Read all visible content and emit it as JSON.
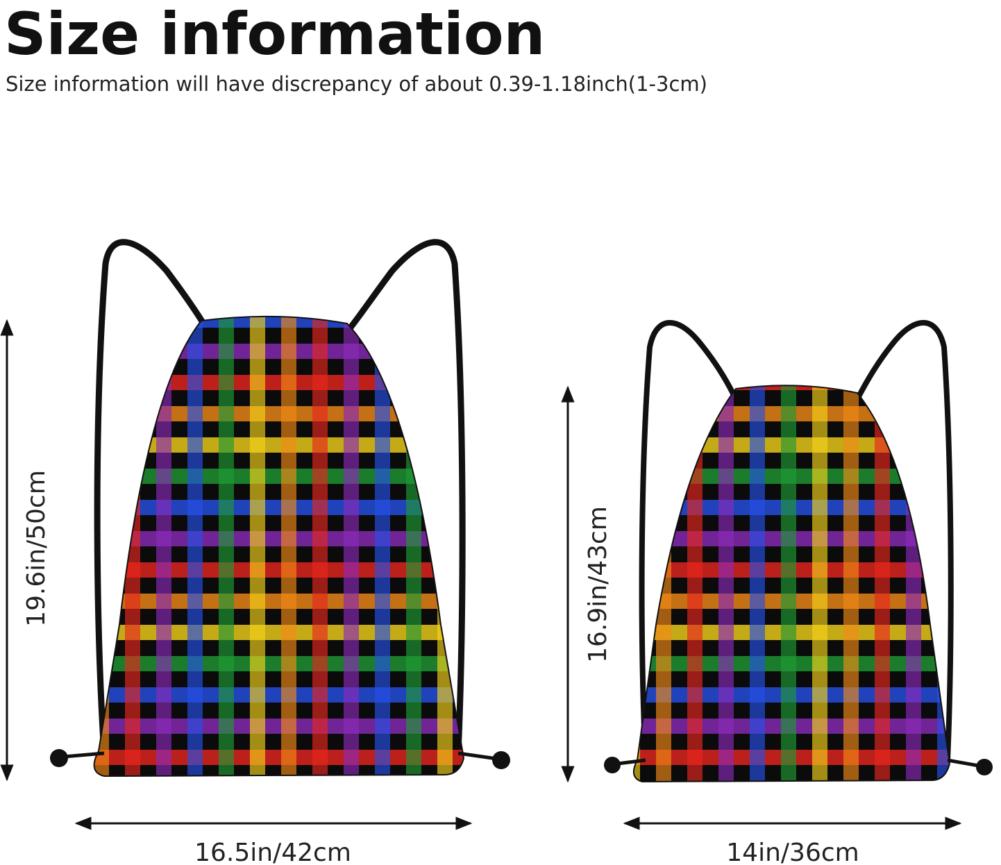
{
  "header": {
    "title": "Size information",
    "subtitle": "Size information will have discrepancy of about 0.39-1.18inch(1-3cm)"
  },
  "products": [
    {
      "height": "19.6in/50cm",
      "width": "16.5in/42cm"
    },
    {
      "height": "16.9in/43cm",
      "width": "14in/36cm"
    }
  ]
}
